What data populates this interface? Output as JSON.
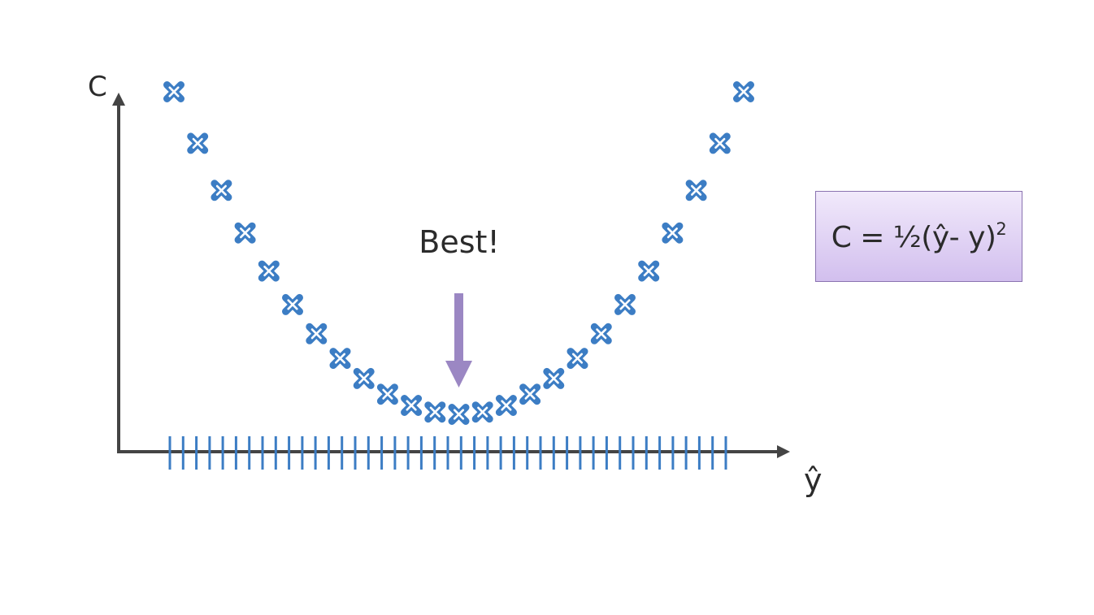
{
  "diagram": {
    "y_axis_label": "C",
    "x_axis_label": "ŷ",
    "annotation": "Best!",
    "formula": {
      "main": "C = ½(ŷ- y)",
      "exponent": "2"
    },
    "tick_count": 43,
    "points": [
      {
        "x": -12,
        "y": 144
      },
      {
        "x": -11,
        "y": 121
      },
      {
        "x": -10,
        "y": 100
      },
      {
        "x": -9,
        "y": 81
      },
      {
        "x": -8,
        "y": 64
      },
      {
        "x": -7,
        "y": 49
      },
      {
        "x": -6,
        "y": 36
      },
      {
        "x": -5,
        "y": 25
      },
      {
        "x": -4,
        "y": 16
      },
      {
        "x": -3,
        "y": 9
      },
      {
        "x": -2,
        "y": 4
      },
      {
        "x": -1,
        "y": 1
      },
      {
        "x": 0,
        "y": 0
      },
      {
        "x": 1,
        "y": 1
      },
      {
        "x": 2,
        "y": 4
      },
      {
        "x": 3,
        "y": 9
      },
      {
        "x": 4,
        "y": 16
      },
      {
        "x": 5,
        "y": 25
      },
      {
        "x": 6,
        "y": 36
      },
      {
        "x": 7,
        "y": 49
      },
      {
        "x": 8,
        "y": 64
      },
      {
        "x": 9,
        "y": 81
      },
      {
        "x": 10,
        "y": 100
      },
      {
        "x": 11,
        "y": 121
      },
      {
        "x": 12,
        "y": 144
      }
    ],
    "colors": {
      "axis": "#444444",
      "marker": "#3c7dc4",
      "tick": "#3c7dc4",
      "arrow": "#9b87c3",
      "formula_border": "#8a73b0"
    }
  }
}
